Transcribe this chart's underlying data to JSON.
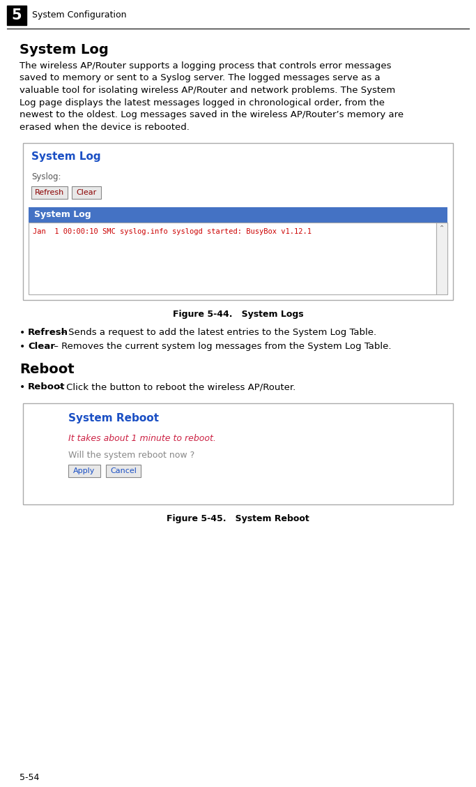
{
  "page_bg": "#ffffff",
  "chapter_num": "5",
  "chapter_title": "System Configuration",
  "page_number": "5-54",
  "section1_title": "System Log",
  "section1_body": "The wireless AP/Router supports a logging process that controls error messages saved to memory or sent to a Syslog server. The logged messages serve as a valuable tool for isolating wireless AP/Router and network problems. The System Log page displays the latest messages logged in chronological order, from the newest to the oldest. Log messages saved in the wireless AP/Router’s memory are erased when the device is rebooted.",
  "figure1_caption": "Figure 5-44.   System Logs",
  "figure1_panel_title": "System Log",
  "figure1_syslog_label": "Syslog:",
  "figure1_btn1": "Refresh",
  "figure1_btn2": "Clear",
  "figure1_table_header": "System Log",
  "figure1_log_text": "Jan  1 00:00:10 SMC syslog.info syslogd started: BusyBox v1.12.1",
  "bullet1_bold": "Refresh",
  "bullet1_text": " – Sends a request to add the latest entries to the System Log Table.",
  "bullet2_bold": "Clear",
  "bullet2_text": " – Removes the current system log messages from the System Log Table.",
  "section2_title": "Reboot",
  "bullet3_bold": "Reboot",
  "bullet3_text": " – Click the button to reboot the wireless AP/Router.",
  "figure2_caption": "Figure 5-45.   System Reboot",
  "figure2_panel_title": "System Reboot",
  "figure2_red_text": "It takes about 1 minute to reboot.",
  "figure2_gray_text": "Will the system reboot now ?",
  "figure2_btn1": "Apply",
  "figure2_btn2": "Cancel",
  "panel_title_color": "#1a4fc4",
  "table_header_bg": "#4472c4",
  "log_text_color": "#cc0000",
  "red_text_color": "#cc2244",
  "gray_text_color": "#888888",
  "body_lines": [
    "The wireless AP/Router supports a logging process that controls error messages",
    "saved to memory or sent to a Syslog server. The logged messages serve as a",
    "valuable tool for isolating wireless AP/Router and network problems. The System",
    "Log page displays the latest messages logged in chronological order, from the",
    "newest to the oldest. Log messages saved in the wireless AP/Router’s memory are",
    "erased when the device is rebooted."
  ]
}
